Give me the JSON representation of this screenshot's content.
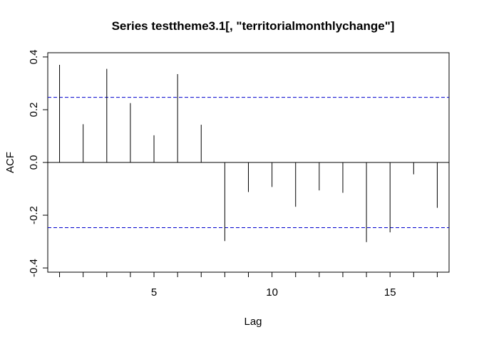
{
  "chart_data": {
    "type": "acf",
    "title": "Series  testtheme3.1[, \"territorialmonthlychange\"]",
    "xlabel": "Lag",
    "ylabel": "ACF",
    "xlim": [
      0.5,
      17.5
    ],
    "ylim": [
      -0.4,
      0.4
    ],
    "xticks": [
      5,
      10,
      15
    ],
    "yticks": [
      -0.4,
      -0.2,
      0.0,
      0.2,
      0.4
    ],
    "ytick_labels": [
      "-0.4",
      "-0.2",
      "0.0",
      "0.2",
      "0.4"
    ],
    "lags": [
      1,
      2,
      3,
      4,
      5,
      6,
      7,
      8,
      9,
      10,
      11,
      12,
      13,
      14,
      15,
      16,
      17
    ],
    "acf": [
      0.37,
      0.145,
      0.355,
      0.225,
      0.103,
      0.335,
      0.143,
      -0.298,
      -0.112,
      -0.093,
      -0.168,
      -0.106,
      -0.115,
      -0.302,
      -0.265,
      -0.045,
      -0.172
    ],
    "ci_level": 0.247,
    "colors": {
      "bars": "#000000",
      "ci": "#0000CD",
      "zero_line": "#000000",
      "frame": "#000000"
    },
    "grid": false
  }
}
